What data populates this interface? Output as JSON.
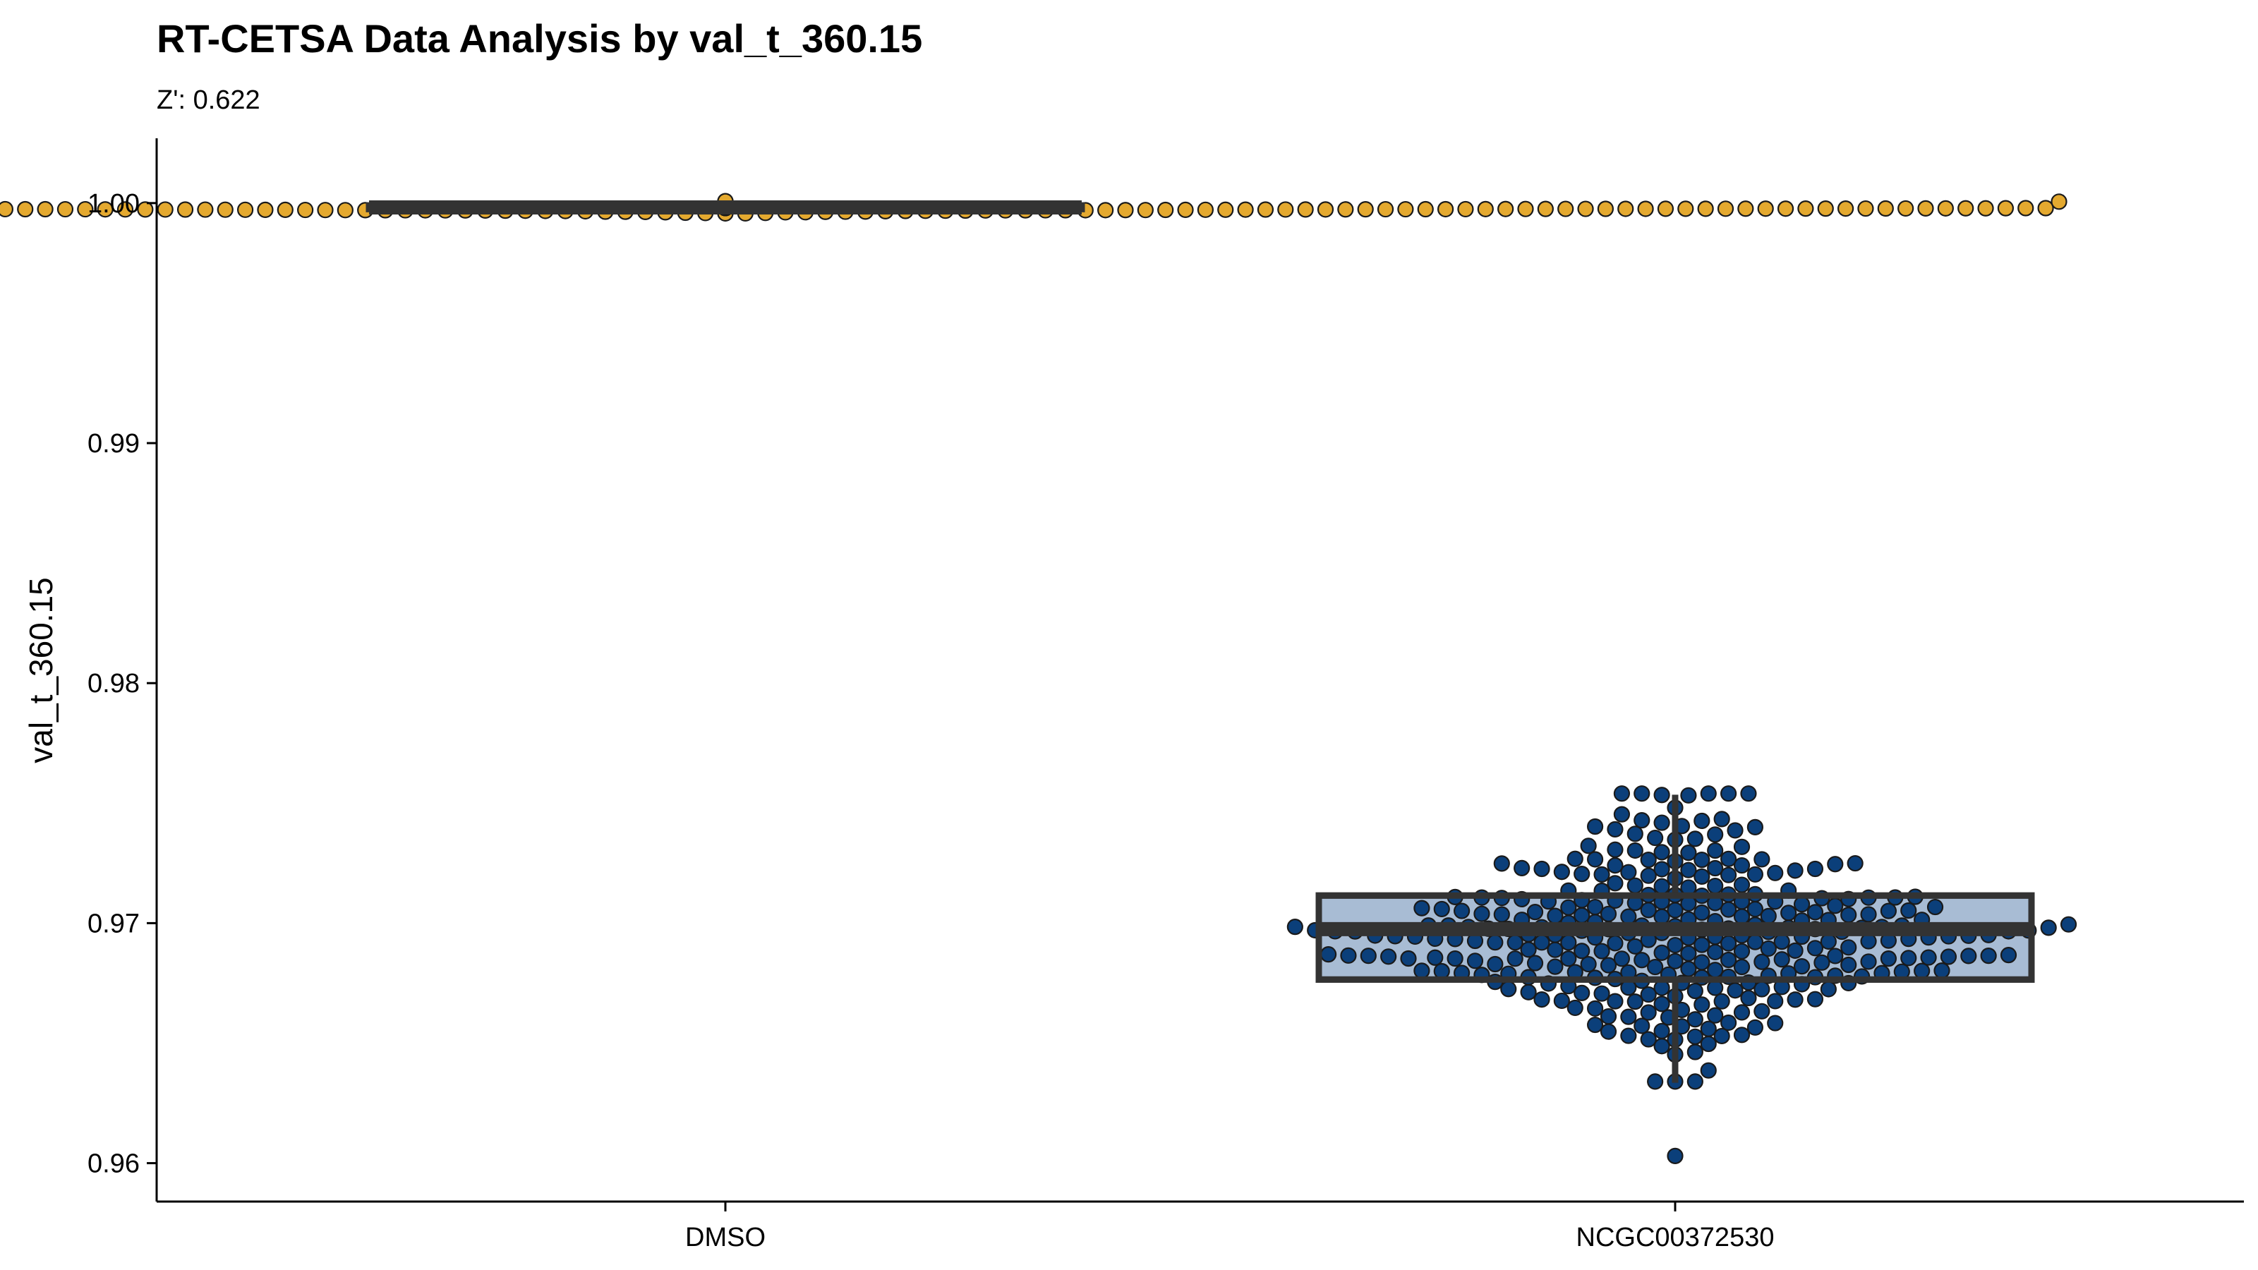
{
  "chart_data": {
    "type": "box",
    "title": "RT-CETSA Data Analysis by val_t_360.15",
    "subtitle": "Z': 0.622",
    "xlabel": "",
    "ylabel": "val_t_360.15",
    "ylim": [
      0.9584,
      1.0027
    ],
    "yticks": [
      "0.96",
      "0.97",
      "0.98",
      "0.99",
      "1.00"
    ],
    "ytick_values": [
      0.96,
      0.97,
      0.98,
      0.99,
      1.0
    ],
    "categories": [
      "DMSO",
      "NCGC00372530"
    ],
    "grid": false,
    "legend": "none",
    "groups": [
      {
        "name": "DMSO",
        "box_fill": "#f5dfa9",
        "point_color": "#e4a92f",
        "q1": 0.99975,
        "median": 0.99982,
        "q3": 0.9999,
        "whisker_low": 0.99957,
        "whisker_high": 1.00008,
        "points_summary": {
          "n": 384,
          "min": 0.99957,
          "max": 1.00008,
          "mean": 0.99982,
          "sd": 9e-05
        }
      },
      {
        "name": "NCGC00372530",
        "box_fill": "#a8bcd4",
        "point_color": "#0b3f7a",
        "q1": 0.96765,
        "median": 0.96975,
        "q3": 0.97115,
        "whisker_low": 0.96335,
        "whisker_high": 0.97535,
        "outliers": [
          0.9603
        ],
        "points_summary": {
          "n": 330,
          "min": 0.9634,
          "max": 0.9754,
          "mean": 0.9695,
          "sd": 0.0022
        }
      }
    ],
    "colors": {
      "box_stroke": "#333333",
      "point_stroke": "#1a1a1a",
      "axis": "#000000"
    }
  }
}
